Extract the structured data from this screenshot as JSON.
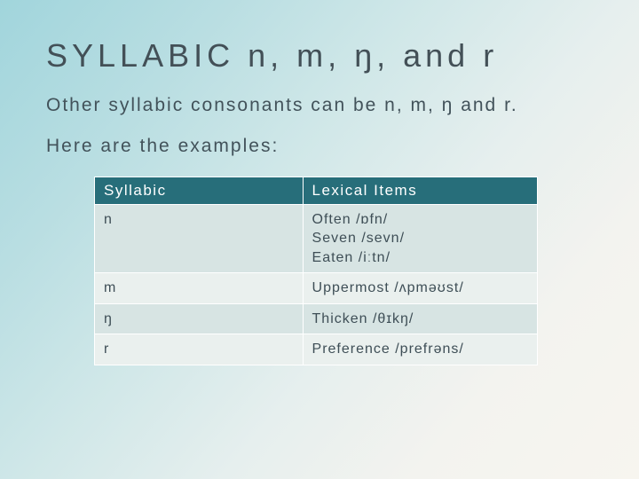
{
  "title": "SYLLABIC n, m, ŋ, and r",
  "intro": "Other syllabic consonants can be n, m, ŋ and r.",
  "examples_lead": "Here are the examples:",
  "table": {
    "headers": {
      "col1": "Syllabic",
      "col2": "Lexical Items"
    },
    "rows": [
      {
        "syllabic": "n",
        "lexical": "Often /ɒfn/\nSeven /sevn/\nEaten /iːtn/"
      },
      {
        "syllabic": "m",
        "lexical": "Uppermost /ʌpməʊst/"
      },
      {
        "syllabic": "ŋ",
        "lexical": "Thicken /θɪkŋ/"
      },
      {
        "syllabic": "r",
        "lexical": "Preference /prefrəns/"
      }
    ]
  },
  "colors": {
    "header_bg": "#276e7a",
    "header_fg": "#ffffff",
    "row_odd_bg": "#d7e4e3",
    "row_even_bg": "#eaf0ee",
    "text": "#3f4c53"
  }
}
